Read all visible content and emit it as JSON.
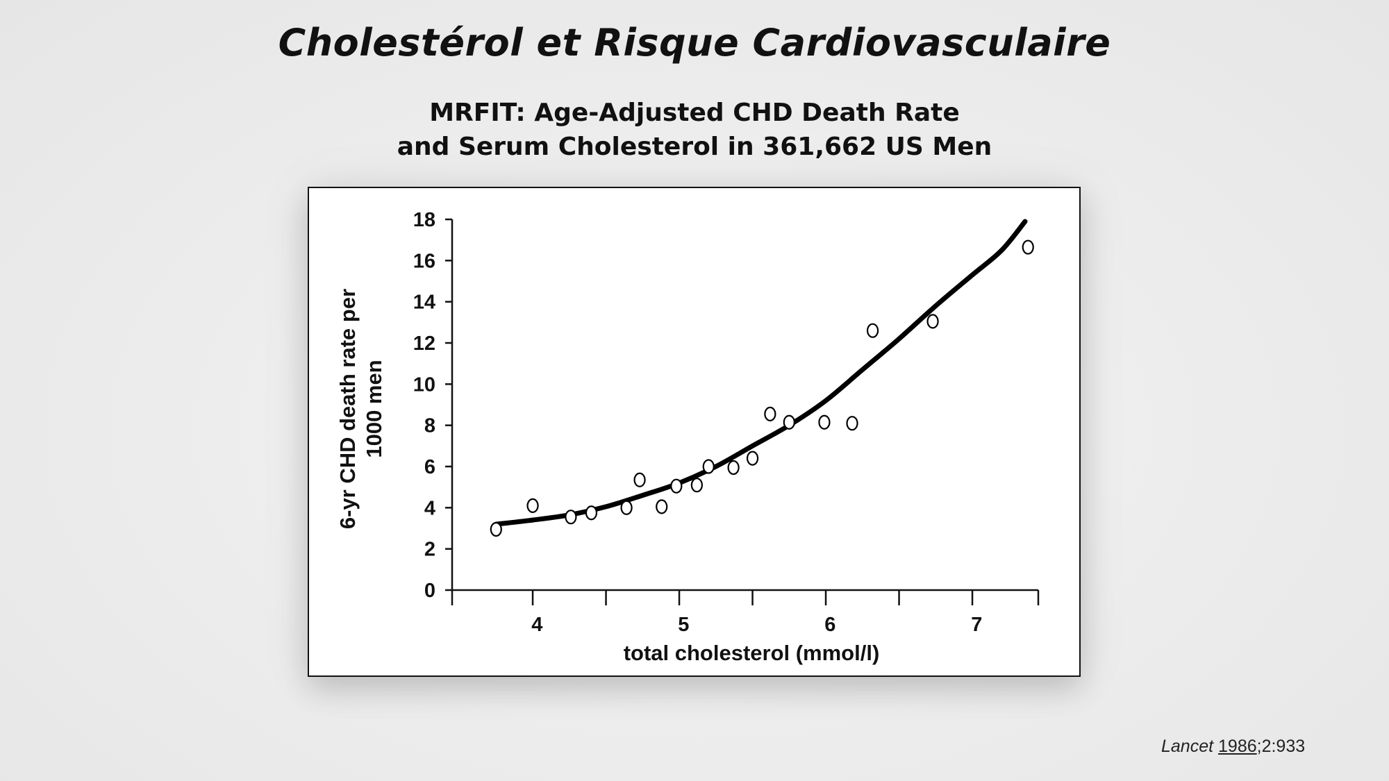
{
  "slide": {
    "title": "Cholestérol et Risque Cardiovasculaire",
    "subtitle_line1": "MRFIT: Age-Adjusted CHD Death Rate",
    "subtitle_line2": "and Serum Cholesterol in 361,662 US Men"
  },
  "citation": {
    "journal": "Lancet",
    "year": "1986",
    "rest": ";2:933"
  },
  "chart_data": {
    "type": "scatter",
    "title": "",
    "xlabel": "total cholesterol (mmol/l)",
    "ylabel_line1": "6-yr CHD death rate per",
    "ylabel_line2": "1000 men",
    "xlim": [
      3.45,
      7.45
    ],
    "ylim": [
      0,
      18
    ],
    "x_ticks": [
      3.45,
      4.0,
      4.5,
      5.0,
      5.5,
      6.0,
      6.5,
      7.0,
      7.45
    ],
    "x_tick_labels": [
      {
        "x": 4.03,
        "label": "4"
      },
      {
        "x": 5.03,
        "label": "5"
      },
      {
        "x": 6.03,
        "label": "6"
      },
      {
        "x": 7.03,
        "label": "7"
      }
    ],
    "y_ticks": [
      0,
      2,
      4,
      6,
      8,
      10,
      12,
      14,
      16,
      18
    ],
    "y_tick_labels": [
      "0",
      "2",
      "4",
      "6",
      "8",
      "10",
      "12",
      "14",
      "16",
      "18"
    ],
    "series": [
      {
        "name": "observed",
        "kind": "points",
        "x": [
          3.75,
          4.0,
          4.26,
          4.4,
          4.64,
          4.73,
          4.88,
          4.98,
          5.12,
          5.2,
          5.37,
          5.5,
          5.62,
          5.75,
          5.99,
          6.18,
          6.32,
          6.73,
          7.38
        ],
        "y": [
          2.95,
          4.1,
          3.55,
          3.75,
          4.0,
          5.35,
          4.05,
          5.05,
          5.1,
          6.0,
          5.95,
          6.4,
          8.55,
          8.15,
          8.15,
          8.1,
          12.6,
          13.05,
          16.65
        ]
      },
      {
        "name": "fitted",
        "kind": "curve",
        "x": [
          3.75,
          4.0,
          4.25,
          4.5,
          4.75,
          5.0,
          5.25,
          5.5,
          5.75,
          6.0,
          6.25,
          6.5,
          6.75,
          7.0,
          7.2,
          7.36
        ],
        "y": [
          3.2,
          3.4,
          3.65,
          4.05,
          4.6,
          5.2,
          6.0,
          7.0,
          8.0,
          9.2,
          10.7,
          12.2,
          13.8,
          15.3,
          16.5,
          17.9
        ]
      }
    ]
  }
}
